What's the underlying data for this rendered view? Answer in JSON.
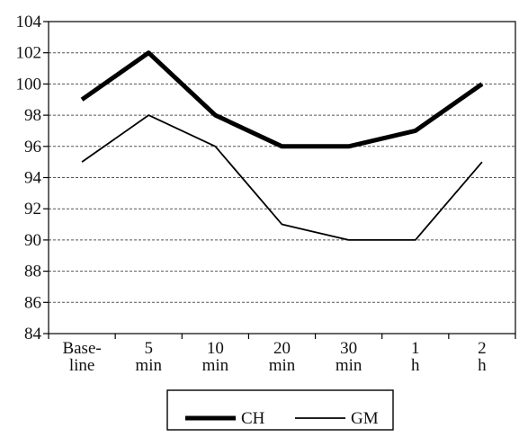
{
  "chart_data": {
    "type": "line",
    "title": "",
    "xlabel": "",
    "ylabel": "",
    "categories": [
      [
        "Base-",
        "line"
      ],
      [
        "5",
        "min"
      ],
      [
        "10",
        "min"
      ],
      [
        "20",
        "min"
      ],
      [
        "30",
        "min"
      ],
      [
        "1",
        "h"
      ],
      [
        "2",
        "h"
      ]
    ],
    "ylim": [
      84,
      104
    ],
    "yticks": [
      "84",
      "86",
      "88",
      "90",
      "92",
      "94",
      "96",
      "98",
      "100",
      "102",
      "104"
    ],
    "grid": "horizontal dashed",
    "legend_position": "bottom",
    "series": [
      {
        "name": "CH",
        "values": [
          99,
          102,
          98,
          96,
          96,
          97,
          100
        ],
        "color": "#000000",
        "style": "thick"
      },
      {
        "name": "GM",
        "values": [
          95,
          98,
          96,
          91,
          90,
          90,
          95
        ],
        "color": "#000000",
        "style": "thin"
      }
    ]
  }
}
